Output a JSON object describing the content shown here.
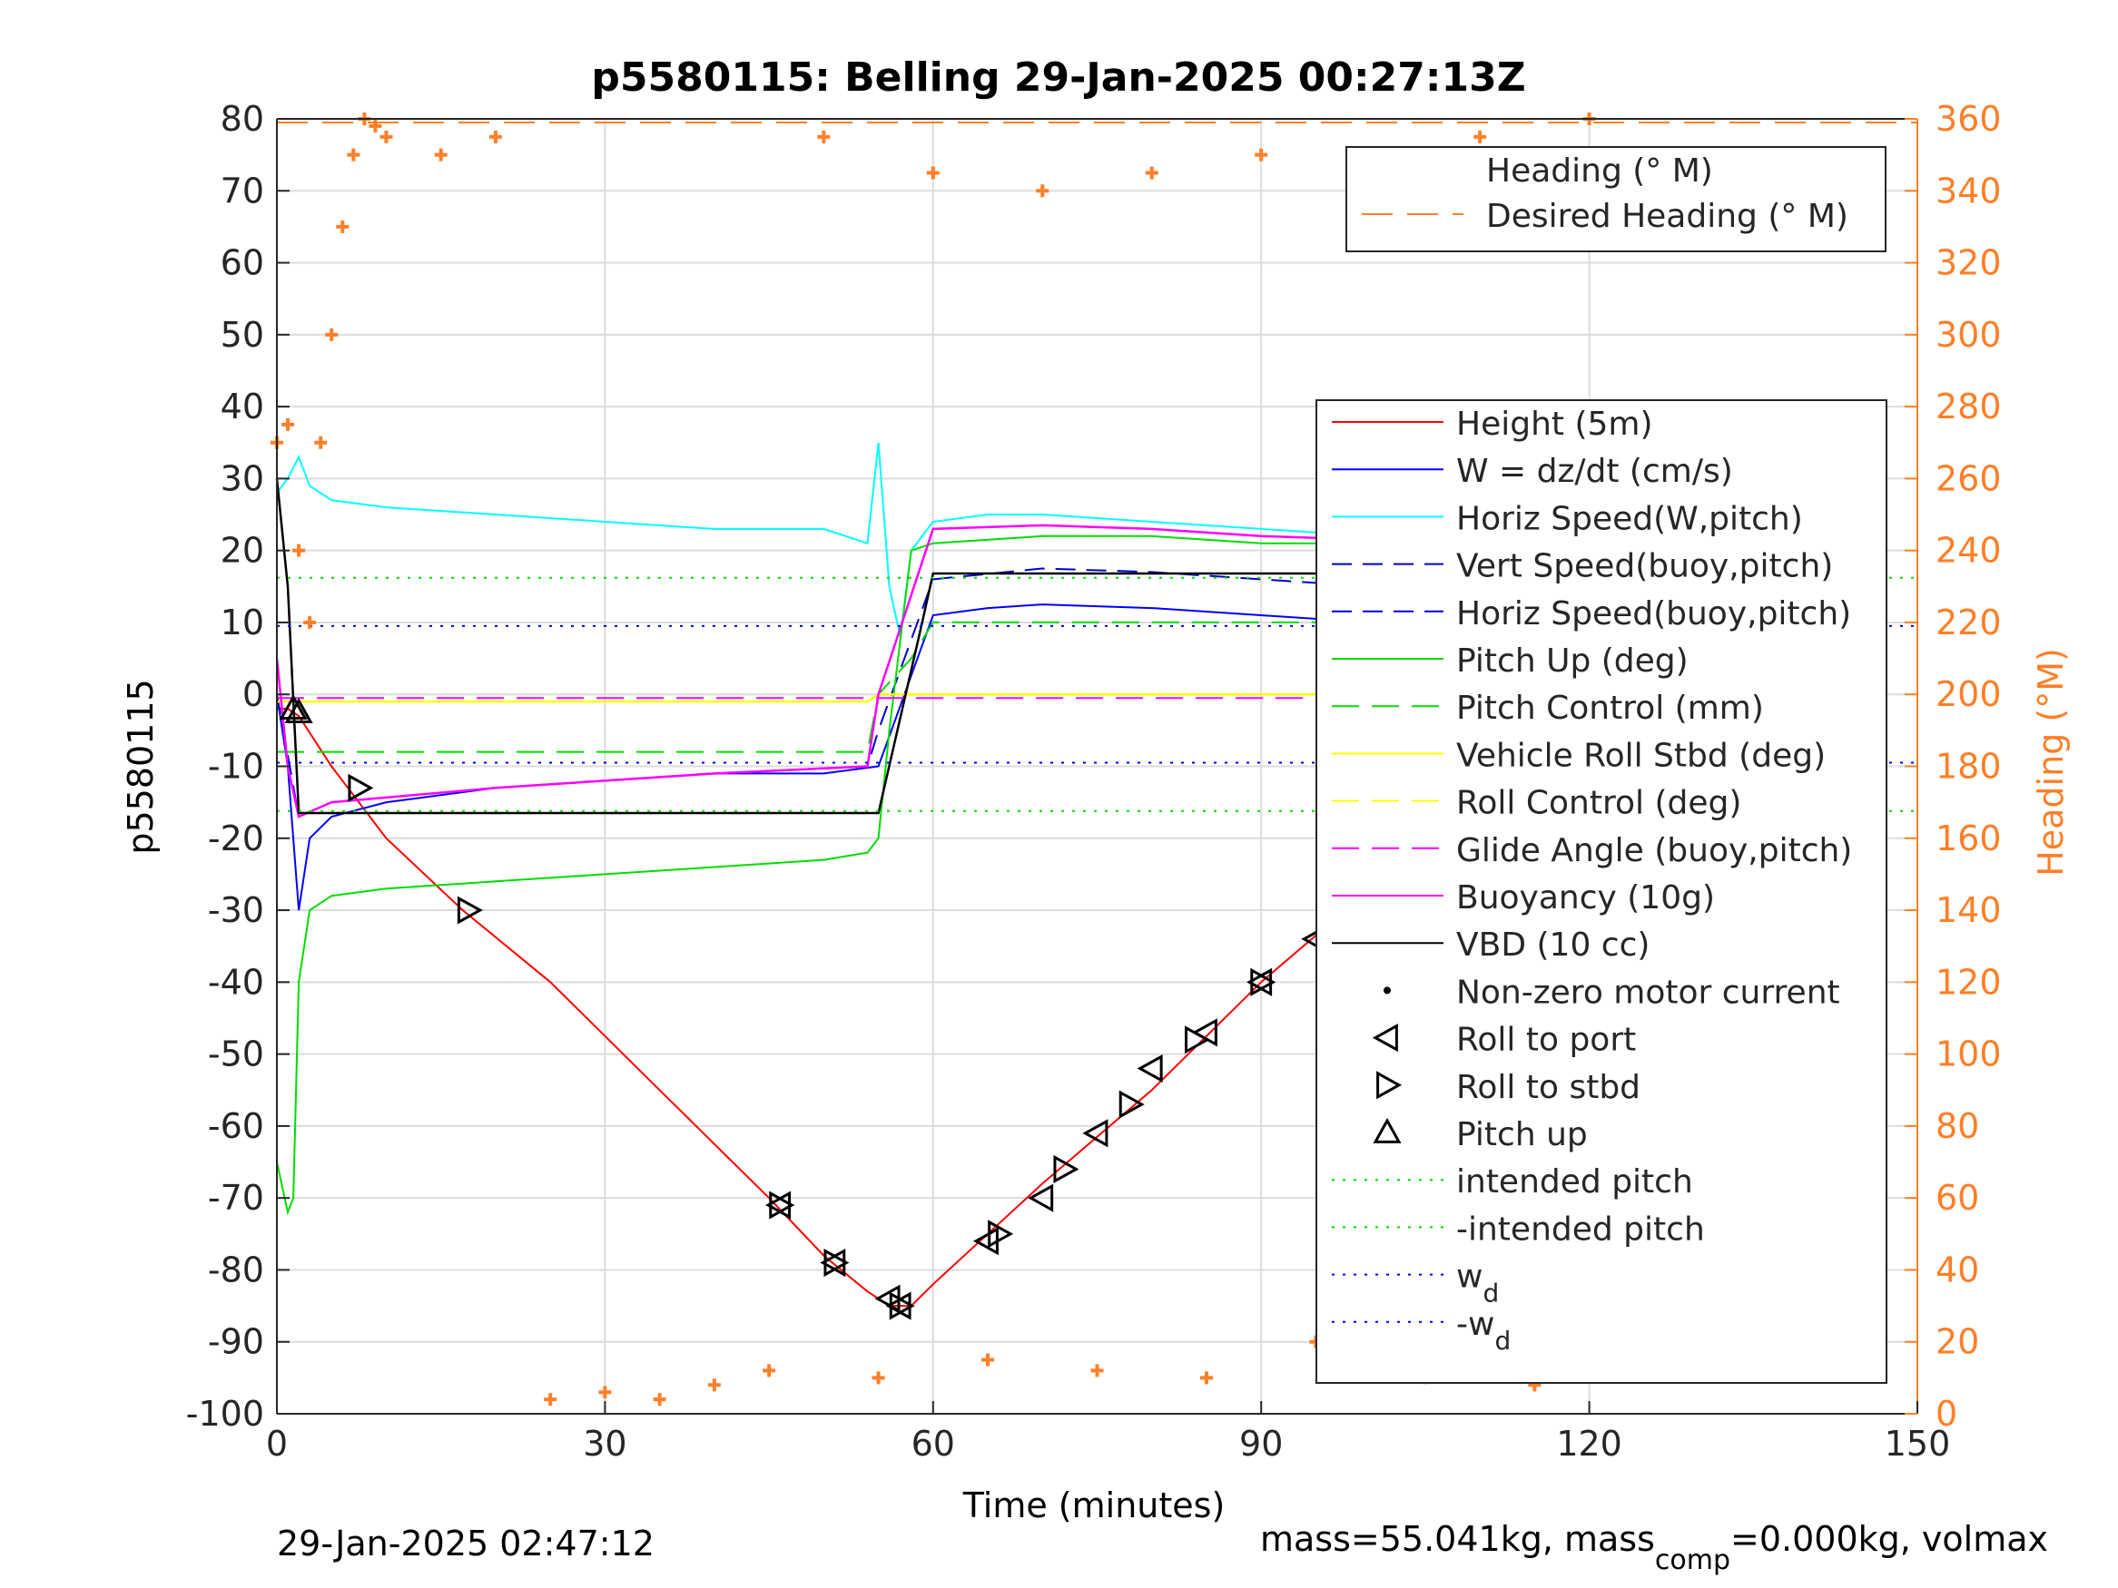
{
  "chart_data": {
    "type": "line",
    "title": "p5580115: Belling 29-Jan-2025 00:27:13Z",
    "xlabel": "Time (minutes)",
    "ylabel_left": "p5580115",
    "ylabel_right": "Heading (°M)",
    "xlim": [
      0,
      150
    ],
    "ylim_left": [
      -100,
      80
    ],
    "ylim_right": [
      0,
      360
    ],
    "grid": true,
    "x_ticks": [
      "0",
      "30",
      "60",
      "90",
      "120",
      "150"
    ],
    "y_ticks_left": [
      "80",
      "70",
      "60",
      "50",
      "40",
      "30",
      "20",
      "10",
      "0",
      "-10",
      "-20",
      "-30",
      "-40",
      "-50",
      "-60",
      "-70",
      "-80",
      "-90",
      "-100"
    ],
    "y_ticks_right": [
      "360",
      "340",
      "320",
      "300",
      "280",
      "260",
      "240",
      "220",
      "200",
      "180",
      "160",
      "140",
      "120",
      "100",
      "80",
      "60",
      "40",
      "20",
      "0"
    ],
    "colors": {
      "height": "#ff0000",
      "w": "#0000ff",
      "horiz_w": "#00ffff",
      "vert_buoy": "#0000cc",
      "pitch": "#00dd00",
      "roll": "#ffff00",
      "glide": "#ff00ff",
      "vbd": "#000000",
      "heading": "#ff7f27",
      "right_axis": "#ff7f27"
    },
    "legend_top": {
      "placement": "top-right",
      "entries": [
        "Heading (° M)",
        "Desired Heading (° M)"
      ]
    },
    "legend_main": {
      "placement": "right",
      "entries": [
        "Height (5m)",
        "W = dz/dt (cm/s)",
        "Horiz Speed(W,pitch)",
        "Vert Speed(buoy,pitch)",
        "Horiz Speed(buoy,pitch)",
        "Pitch Up (deg)",
        "Pitch Control (mm)",
        "Vehicle Roll Stbd (deg)",
        "Roll Control (deg)",
        "Glide Angle (buoy,pitch)",
        "Buoyancy (10g)",
        "VBD (10 cc)",
        "Non-zero motor current",
        "Roll to port",
        "Roll to stbd",
        "Pitch up",
        "intended pitch",
        "-intended pitch",
        "w",
        "-w"
      ],
      "subscript": "d"
    },
    "series": [
      {
        "name": "Height (5m)",
        "x": [
          0,
          1,
          2,
          5,
          10,
          17,
          25,
          35,
          45,
          50,
          54,
          56,
          58,
          60,
          65,
          70,
          80,
          90,
          100,
          110,
          115,
          120,
          122.5
        ],
        "values": [
          -2,
          -2,
          -3,
          -10,
          -20,
          -30,
          -40,
          -55,
          -70,
          -78,
          -83,
          -85,
          -85,
          -82,
          -75,
          -68,
          -55,
          -40,
          -27,
          -15,
          -8,
          -3,
          0
        ]
      },
      {
        "name": "W = dz/dt (cm/s)",
        "x": [
          0,
          1,
          2,
          3,
          5,
          10,
          20,
          30,
          40,
          50,
          55,
          60,
          65,
          70,
          80,
          90,
          100,
          110,
          120,
          122
        ],
        "values": [
          0,
          -10,
          -30,
          -20,
          -17,
          -15,
          -13,
          -12,
          -11,
          -11,
          -10,
          11,
          12,
          12.5,
          12,
          11,
          10,
          9.5,
          9,
          9
        ]
      },
      {
        "name": "Horiz Speed(W,pitch)",
        "x": [
          0,
          1,
          2,
          3,
          5,
          10,
          20,
          30,
          40,
          50,
          54,
          55,
          56,
          57,
          58,
          60,
          65,
          70,
          80,
          90,
          100,
          110,
          120
        ],
        "values": [
          28,
          30,
          33,
          29,
          27,
          26,
          25,
          24,
          23,
          23,
          21,
          35,
          15,
          8,
          20,
          24,
          25,
          25,
          24,
          23,
          22,
          21,
          20
        ]
      },
      {
        "name": "Vert Speed(buoy,pitch)",
        "x": [
          0,
          2,
          5,
          20,
          40,
          54,
          55,
          60,
          70,
          80,
          90,
          100,
          110,
          120
        ],
        "values": [
          0,
          -17,
          -15,
          -13,
          -11,
          -10,
          -5,
          16,
          17.5,
          17,
          16,
          15,
          14,
          14
        ]
      },
      {
        "name": "Pitch Up (deg)",
        "x": [
          0,
          1,
          1.5,
          2,
          3,
          5,
          10,
          20,
          30,
          40,
          50,
          54,
          55,
          56,
          58,
          60,
          70,
          80,
          90,
          100,
          110,
          120
        ],
        "values": [
          -65,
          -72,
          -70,
          -40,
          -30,
          -28,
          -27,
          -26,
          -25,
          -24,
          -23,
          -22,
          -20,
          -5,
          20,
          21,
          22,
          22,
          21,
          21,
          20,
          20
        ]
      },
      {
        "name": "Pitch Control (mm)",
        "x": [
          0,
          1,
          2,
          6,
          54,
          55,
          58,
          60,
          65,
          120
        ],
        "values": [
          -8,
          -8,
          -8,
          -8,
          -8,
          0,
          5,
          10,
          10,
          10
        ]
      },
      {
        "name": "Vehicle Roll Stbd (deg)",
        "x": [
          0,
          5,
          20,
          45,
          54,
          55,
          60,
          70,
          80,
          90,
          100,
          110,
          120,
          122
        ],
        "values": [
          -1,
          -1,
          -1,
          -1,
          -1,
          0,
          0,
          0,
          0,
          0,
          0,
          0,
          0,
          0
        ]
      },
      {
        "name": "Glide Angle (buoy,pitch)",
        "x": [
          0,
          120
        ],
        "values": [
          -0.5,
          -0.5
        ]
      },
      {
        "name": "Buoyancy (10g)",
        "x": [
          0,
          1,
          2,
          5,
          20,
          40,
          54,
          55,
          60,
          70,
          80,
          90,
          100,
          110,
          120,
          122
        ],
        "values": [
          5,
          -10,
          -17,
          -15,
          -13,
          -11,
          -10,
          0,
          23,
          23.5,
          23,
          22,
          21.5,
          21,
          20,
          21
        ]
      },
      {
        "name": "VBD (10 cc)",
        "x": [
          0,
          1,
          2,
          54,
          55,
          59,
          60,
          62,
          105,
          106,
          115,
          122
        ],
        "values": [
          30,
          15,
          -16.5,
          -16.5,
          -16.5,
          10,
          16.8,
          16.8,
          16.8,
          17,
          22,
          22
        ]
      },
      {
        "name": "intended pitch",
        "x": [
          0,
          150
        ],
        "values": [
          16.2,
          16.2
        ]
      },
      {
        "name": "-intended pitch",
        "x": [
          0,
          150
        ],
        "values": [
          -16.2,
          -16.2
        ]
      },
      {
        "name": "w",
        "x": [
          0,
          150
        ],
        "values": [
          9.5,
          9.5
        ]
      },
      {
        "name": "-w",
        "x": [
          0,
          150
        ],
        "values": [
          -9.5,
          -9.5
        ]
      },
      {
        "name": "Desired Heading (° M)",
        "axis": "right",
        "x": [
          0,
          150
        ],
        "values": [
          359,
          359
        ]
      },
      {
        "name": "Heading (° M)",
        "axis": "right",
        "x": [
          0,
          1,
          2,
          3,
          4,
          5,
          6,
          7,
          8,
          9,
          10,
          15,
          20,
          25,
          30,
          35,
          40,
          45,
          50,
          55,
          60,
          65,
          70,
          75,
          80,
          85,
          90,
          95,
          100,
          105,
          110,
          115,
          120,
          122
        ],
        "values": [
          270,
          275,
          240,
          220,
          270,
          300,
          330,
          350,
          360,
          358,
          355,
          350,
          355,
          4,
          6,
          4,
          8,
          12,
          355,
          10,
          345,
          15,
          340,
          12,
          345,
          10,
          350,
          20,
          340,
          10,
          355,
          8,
          360,
          18
        ]
      }
    ],
    "markers": {
      "pitch_up": {
        "x": [
          1.5,
          2,
          122.5
        ],
        "values": [
          -2,
          -2.5,
          0
        ]
      },
      "roll_to_port": {
        "x": [
          46,
          51,
          56,
          57,
          65,
          70,
          75,
          80,
          85,
          90,
          95,
          100,
          105,
          113,
          118
        ],
        "values": [
          -71,
          -79,
          -84,
          -85,
          -76,
          -70,
          -61,
          -52,
          -47,
          -40,
          -34,
          -27,
          -21,
          -10,
          -4
        ]
      },
      "roll_to_stbd": {
        "x": [
          7.5,
          17.5,
          46,
          51,
          57,
          66,
          72,
          78,
          84,
          90,
          97,
          104,
          114,
          119
        ],
        "values": [
          -13,
          -30,
          -71,
          -79,
          -85,
          -75,
          -66,
          -57,
          -48,
          -40,
          -30,
          -21,
          -9,
          -4
        ]
      }
    }
  },
  "footer": {
    "timestamp": "29-Jan-2025 02:47:12",
    "mass_prefix": "mass=55.041kg, mass",
    "mass_sub": "comp",
    "mass_suffix": "=0.000kg, volmax"
  }
}
